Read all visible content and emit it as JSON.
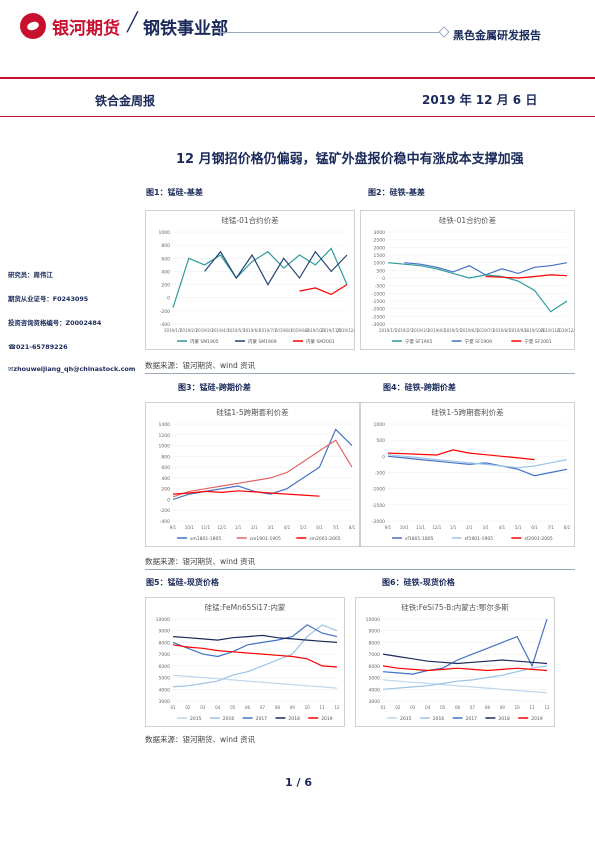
{
  "header": {
    "company": "银河期货",
    "slash": "╱",
    "department": "钢铁事业部",
    "report_type": "黑色金属研发报告"
  },
  "banner": {
    "report_name": "铁合金周报",
    "date": "2019 年 12 月 6 日"
  },
  "title": "12 月钢招价格仍偏弱，锰矿外盘报价稳中有涨成本支撑加强",
  "analyst": {
    "researcher": "研究员：周伟江",
    "qualification": "期货从业证号：F0243095",
    "consult_license": "投资咨询资格编号：Z0002484",
    "phone": "☎021-65789226",
    "email": "✉zhouweijiang_qh@chinastock.com"
  },
  "figures": [
    {
      "label": "图1：锰硅-基差"
    },
    {
      "label": "图2：硅铁-基差"
    },
    {
      "label": "图3：锰硅-跨期价差"
    },
    {
      "label": "图4：硅铁-跨期价差"
    },
    {
      "label": "图5：锰硅-现货价格"
    },
    {
      "label": "图6：硅铁-现货价格"
    }
  ],
  "sources": [
    "数据来源：银河期货、wind 资讯",
    "数据来源：银河期货、wind 资讯",
    "数据来源：银河期货、wind 资讯"
  ],
  "page": "1 / 6",
  "colors": {
    "blue1": "#4472c4",
    "blue2": "#264478",
    "red": "#ff0000",
    "teal": "#2e9b9b",
    "navy": "#1a2a5a",
    "lightblue": "#9dc3e6"
  },
  "chart_data": [
    {
      "type": "line",
      "title": "硅锰-01合约价差",
      "ylim": [
        -400,
        1000
      ],
      "yticks": [
        "1000",
        "800",
        "600",
        "400",
        "200",
        "0",
        "-200",
        "-400"
      ],
      "x": [
        "2019/1/1",
        "2019/2/1",
        "2019/3/1",
        "2019/4/1",
        "2019/5/1",
        "2019/6/1",
        "2019/7/1",
        "2019/8/1",
        "2019/9/1",
        "2019/10/1",
        "2019/11/1",
        "2019/12/1"
      ],
      "series": [
        {
          "name": "内蒙 SM1905",
          "color": "#2e9b9b",
          "values": [
            -150,
            600,
            500,
            650,
            300,
            550,
            700,
            450,
            650,
            500,
            750,
            200
          ]
        },
        {
          "name": "内蒙 SM1909",
          "color": "#264478",
          "values": [
            null,
            null,
            400,
            700,
            300,
            650,
            200,
            600,
            300,
            700,
            400,
            650
          ]
        },
        {
          "name": "内蒙 SM2001",
          "color": "#ff0000",
          "values": [
            null,
            null,
            null,
            null,
            null,
            null,
            null,
            null,
            100,
            150,
            50,
            200
          ]
        }
      ]
    },
    {
      "type": "line",
      "title": "硅铁-01合约价差",
      "ylim": [
        -3000,
        3000
      ],
      "yticks": [
        "3000",
        "2500",
        "2000",
        "1500",
        "1000",
        "500",
        "0",
        "-500",
        "-1000",
        "-1500",
        "-2000",
        "-2500",
        "-3000"
      ],
      "x": [
        "2019/1/1",
        "2019/2/1",
        "2019/3/1",
        "2019/4/1",
        "2019/5/1",
        "2019/6/1",
        "2019/7/1",
        "2019/8/1",
        "2019/9/1",
        "2019/10/1",
        "2019/11/1",
        "2019/12/1"
      ],
      "series": [
        {
          "name": "宁夏 SF1905",
          "color": "#2e9b9b",
          "values": [
            1000,
            900,
            800,
            600,
            300,
            0,
            200,
            100,
            -200,
            -800,
            -2200,
            -1500
          ]
        },
        {
          "name": "宁夏 SF1909",
          "color": "#4472c4",
          "values": [
            null,
            1000,
            900,
            700,
            400,
            800,
            200,
            600,
            300,
            700,
            800,
            1000
          ]
        },
        {
          "name": "宁夏 SF2001",
          "color": "#ff0000",
          "values": [
            null,
            null,
            null,
            null,
            null,
            null,
            100,
            50,
            0,
            100,
            200,
            150
          ]
        }
      ]
    },
    {
      "type": "line",
      "title": "硅锰1-5跨期套利价差",
      "ylim": [
        -400,
        1400
      ],
      "yticks": [
        "1400",
        "1200",
        "1000",
        "800",
        "600",
        "400",
        "200",
        "0",
        "-200",
        "-400"
      ],
      "x": [
        "9/1",
        "10/1",
        "11/1",
        "12/1",
        "1/1",
        "2/1",
        "3/1",
        "4/1",
        "5/1",
        "6/1",
        "7/1",
        "8/1"
      ],
      "series": [
        {
          "name": "sm1801-1805",
          "color": "#4472c4",
          "values": [
            0,
            100,
            150,
            200,
            250,
            150,
            100,
            200,
            400,
            600,
            1300,
            1000
          ]
        },
        {
          "name": "sm1901-1905",
          "color": "#e06666",
          "values": [
            50,
            150,
            200,
            250,
            300,
            350,
            400,
            500,
            700,
            900,
            1100,
            600
          ]
        },
        {
          "name": "sm2001-2005",
          "color": "#ff0000",
          "values": [
            100,
            120,
            150,
            130,
            160,
            140,
            120,
            100,
            80,
            60,
            null,
            null
          ]
        }
      ]
    },
    {
      "type": "line",
      "title": "硅铁1-5跨期套利价差",
      "ylim": [
        -2000,
        1000
      ],
      "yticks": [
        "1000",
        "500",
        "0",
        "-500",
        "-1000",
        "-1500",
        "-2000"
      ],
      "x": [
        "9/1",
        "10/1",
        "11/1",
        "12/1",
        "1/1",
        "2/1",
        "3/1",
        "4/1",
        "5/1",
        "6/1",
        "7/1",
        "8/1"
      ],
      "series": [
        {
          "name": "sf1801-1805",
          "color": "#4472c4",
          "values": [
            0,
            -50,
            -100,
            -150,
            -200,
            -250,
            -200,
            -300,
            -400,
            -600,
            -500,
            -400
          ]
        },
        {
          "name": "sf1901-1905",
          "color": "#9dc3e6",
          "values": [
            50,
            0,
            -50,
            -100,
            -150,
            -200,
            -250,
            -300,
            -350,
            -300,
            -200,
            -100
          ]
        },
        {
          "name": "sf2001-2005",
          "color": "#ff0000",
          "values": [
            100,
            80,
            60,
            40,
            200,
            100,
            50,
            0,
            -50,
            -100,
            null,
            null
          ]
        }
      ]
    },
    {
      "type": "line",
      "title": "硅锰:FeMn65Si17:内蒙",
      "ylim": [
        3000,
        10000
      ],
      "yticks": [
        "10000",
        "9000",
        "8000",
        "7000",
        "6000",
        "5000",
        "4000",
        "3000"
      ],
      "x": [
        "01",
        "02",
        "03",
        "04",
        "05",
        "06",
        "07",
        "08",
        "09",
        "10",
        "11",
        "12"
      ],
      "series": [
        {
          "name": "2015",
          "color": "#bdd7ee",
          "values": [
            5200,
            5100,
            5000,
            4900,
            4800,
            4700,
            4600,
            4500,
            4400,
            4300,
            4200,
            4100
          ]
        },
        {
          "name": "2016",
          "color": "#9dc3e6",
          "values": [
            4200,
            4300,
            4500,
            4700,
            5200,
            5500,
            6000,
            6500,
            7000,
            8500,
            9500,
            9000
          ]
        },
        {
          "name": "2017",
          "color": "#4472c4",
          "values": [
            8000,
            7500,
            7000,
            6800,
            7200,
            7800,
            8000,
            8200,
            8500,
            9500,
            8800,
            8500
          ]
        },
        {
          "name": "2018",
          "color": "#1a2a5a",
          "values": [
            8500,
            8400,
            8300,
            8200,
            8400,
            8500,
            8600,
            8400,
            8300,
            8200,
            8100,
            8000
          ]
        },
        {
          "name": "2019",
          "color": "#ff0000",
          "values": [
            7800,
            7600,
            7500,
            7300,
            7200,
            7100,
            7000,
            6900,
            6800,
            6600,
            6000,
            5900
          ]
        }
      ]
    },
    {
      "type": "line",
      "title": "硅铁:FeSi75-B:内蒙古:鄂尔多斯",
      "ylim": [
        3000,
        10000
      ],
      "yticks": [
        "10000",
        "9000",
        "8000",
        "7000",
        "6000",
        "5000",
        "4000",
        "3000"
      ],
      "x": [
        "01",
        "02",
        "03",
        "04",
        "05",
        "06",
        "07",
        "08",
        "09",
        "10",
        "11",
        "12"
      ],
      "series": [
        {
          "name": "2015",
          "color": "#bdd7ee",
          "values": [
            4800,
            4700,
            4600,
            4500,
            4400,
            4300,
            4200,
            4100,
            4000,
            3900,
            3800,
            3700
          ]
        },
        {
          "name": "2016",
          "color": "#9dc3e6",
          "values": [
            4000,
            4100,
            4200,
            4300,
            4500,
            4700,
            4800,
            5000,
            5200,
            5500,
            5800,
            6000
          ]
        },
        {
          "name": "2017",
          "color": "#4472c4",
          "values": [
            5500,
            5400,
            5300,
            5600,
            5800,
            6500,
            7000,
            7500,
            8000,
            8500,
            6000,
            10000
          ]
        },
        {
          "name": "2018",
          "color": "#1a2a5a",
          "values": [
            7000,
            6800,
            6600,
            6400,
            6300,
            6200,
            6300,
            6400,
            6500,
            6400,
            6300,
            6200
          ]
        },
        {
          "name": "2019",
          "color": "#ff0000",
          "values": [
            6000,
            5800,
            5700,
            5600,
            5700,
            5800,
            5700,
            5600,
            5700,
            5800,
            5700,
            5600
          ]
        }
      ]
    }
  ]
}
